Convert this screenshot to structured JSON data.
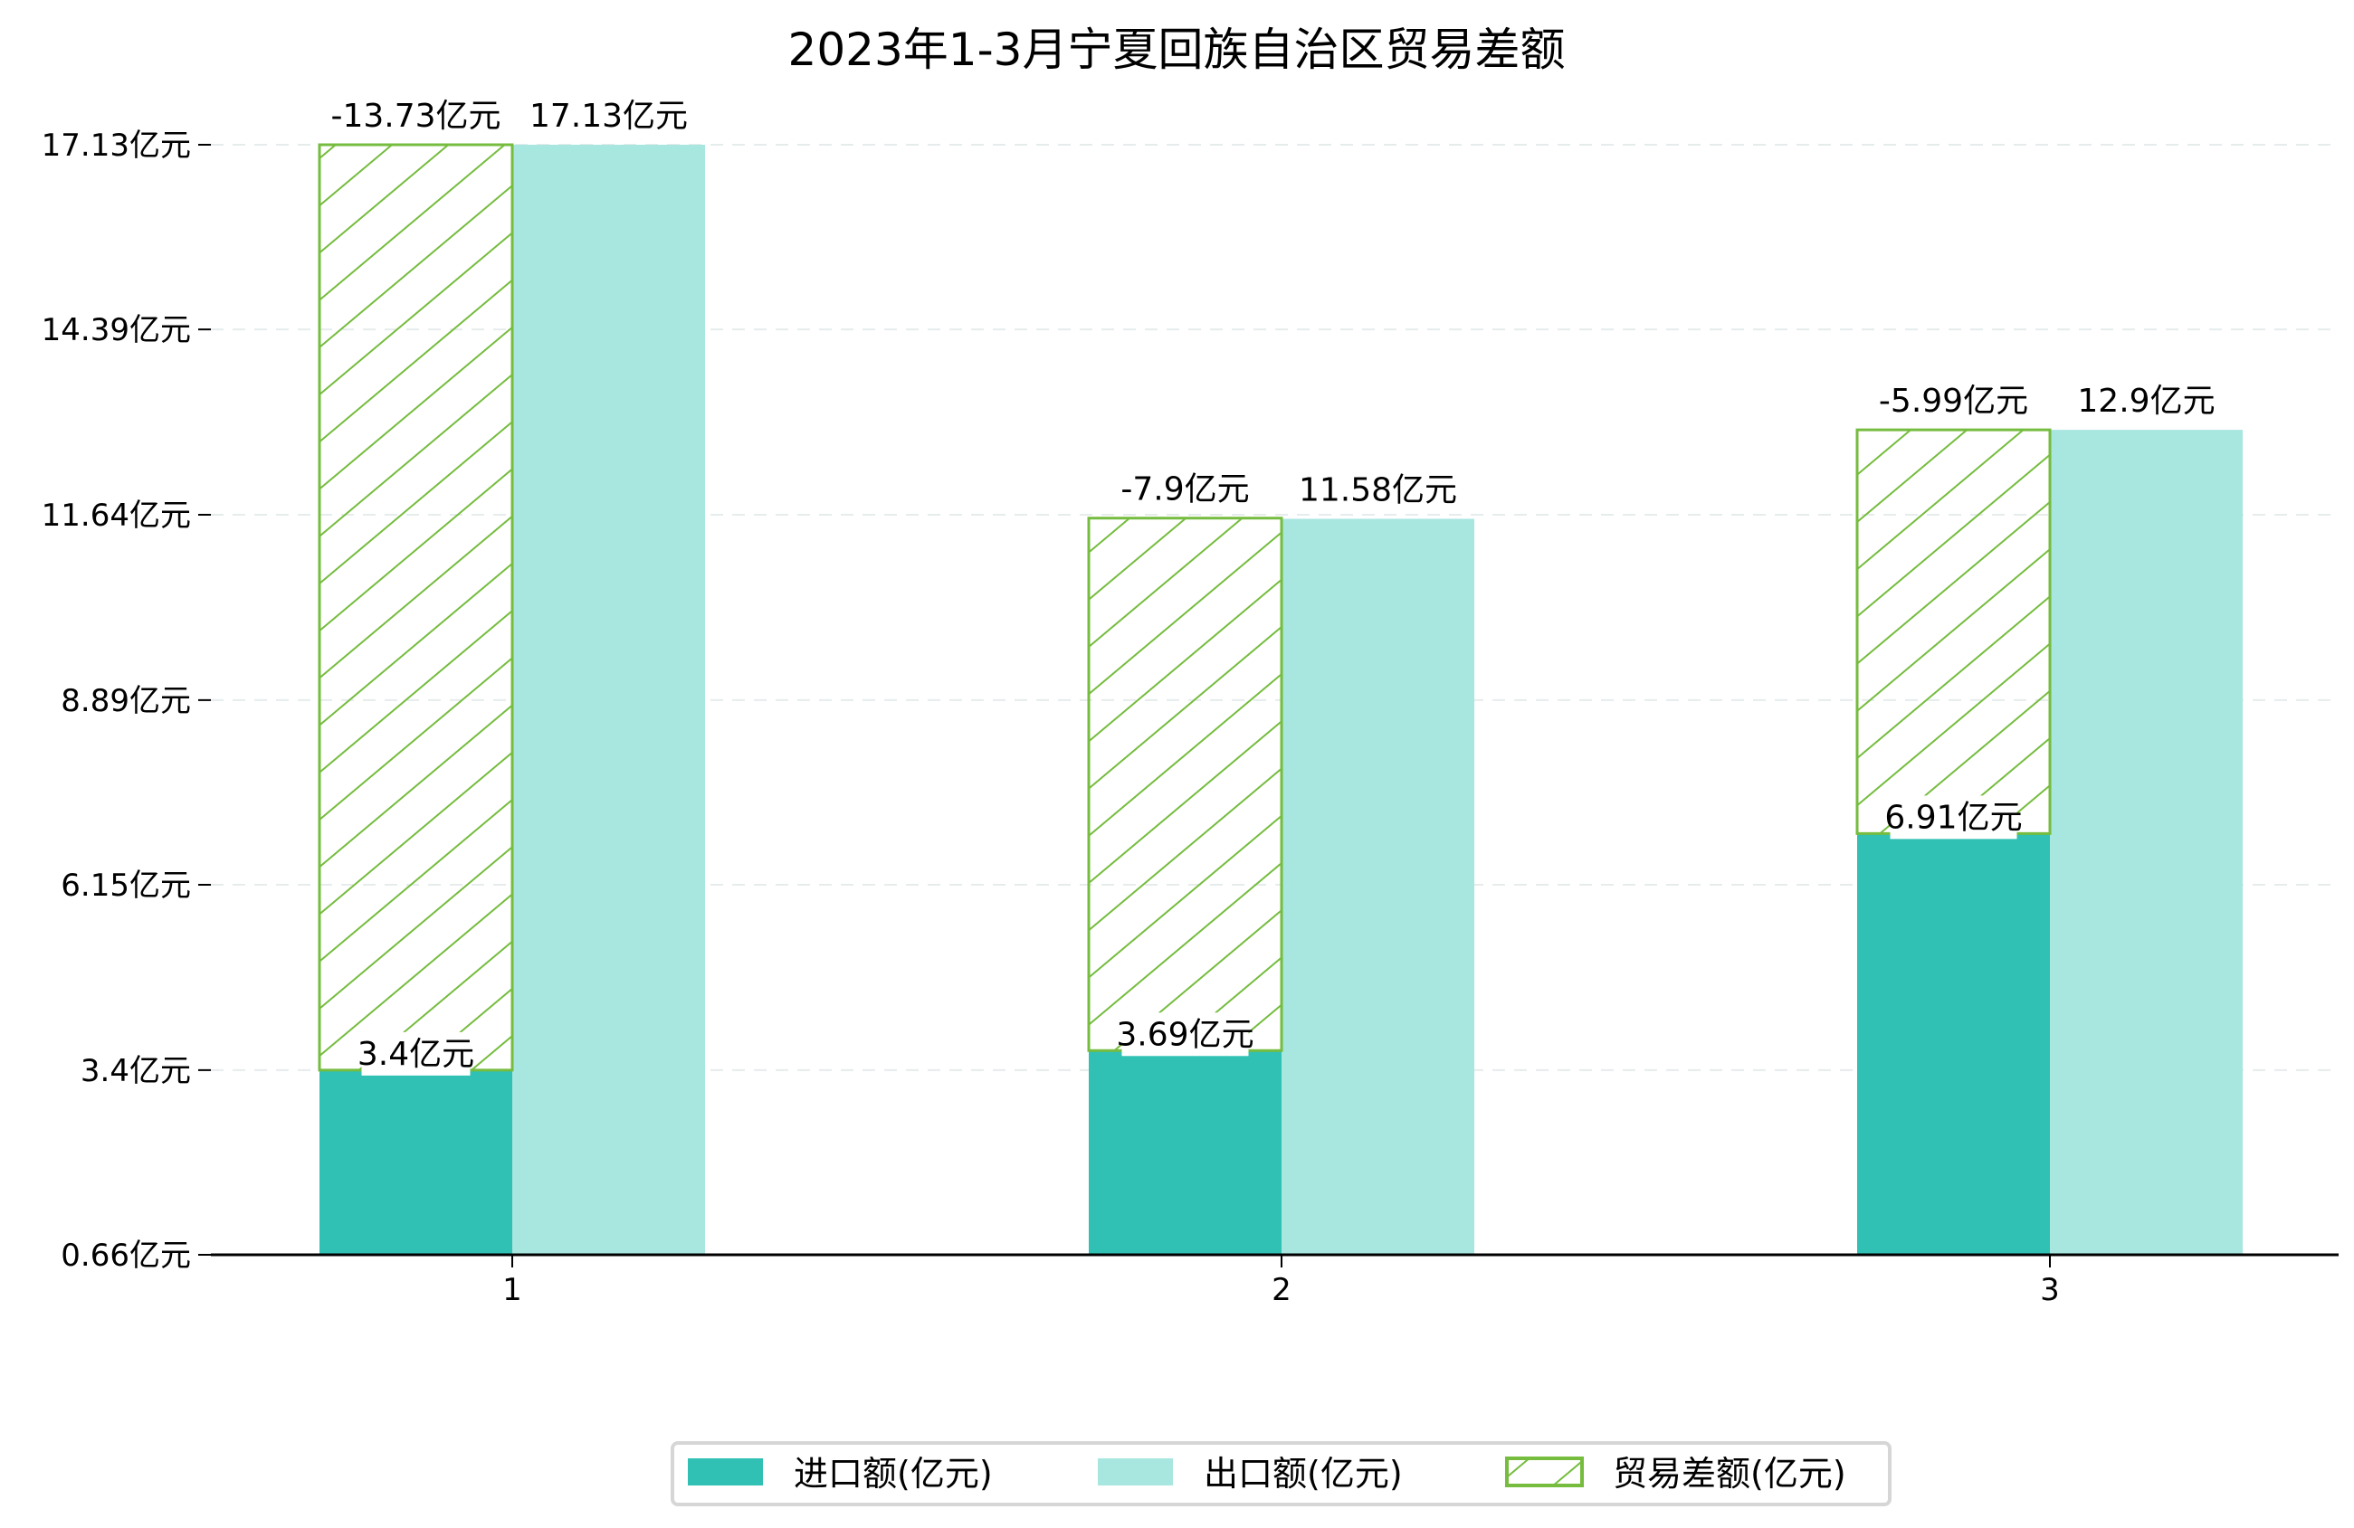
{
  "chart_data": {
    "type": "bar",
    "title": "2023年1-3月宁夏回族自治区贸易差额",
    "categories": [
      "1",
      "2",
      "3"
    ],
    "xlabel": "",
    "ylabel": "",
    "ylim": [
      0.66,
      17.13
    ],
    "yticks": [
      0.66,
      3.4,
      6.15,
      8.89,
      11.64,
      14.39,
      17.13
    ],
    "ytick_labels": [
      "0.66亿元",
      "3.4亿元",
      "6.15亿元",
      "8.89亿元",
      "11.64亿元",
      "14.39亿元",
      "17.13亿元"
    ],
    "grid": "horizontal dashed",
    "legend_position": "bottom-center",
    "series": [
      {
        "name": "进口额(亿元)",
        "values": [
          3.4,
          3.69,
          6.91
        ],
        "labels": [
          "3.4亿元",
          "3.69亿元",
          "6.91亿元"
        ],
        "color": "#30c0b4"
      },
      {
        "name": "出口额(亿元)",
        "values": [
          17.13,
          11.58,
          12.9
        ],
        "labels": [
          "17.13亿元",
          "11.58亿元",
          "12.9亿元"
        ],
        "color": "#a8e6e0"
      },
      {
        "name": "贸易差额(亿元)",
        "values": [
          -13.73,
          -7.9,
          -5.99
        ],
        "labels": [
          "-13.73亿元",
          "-7.9亿元",
          "-5.99亿元"
        ],
        "color": "#76bc3f"
      }
    ]
  }
}
